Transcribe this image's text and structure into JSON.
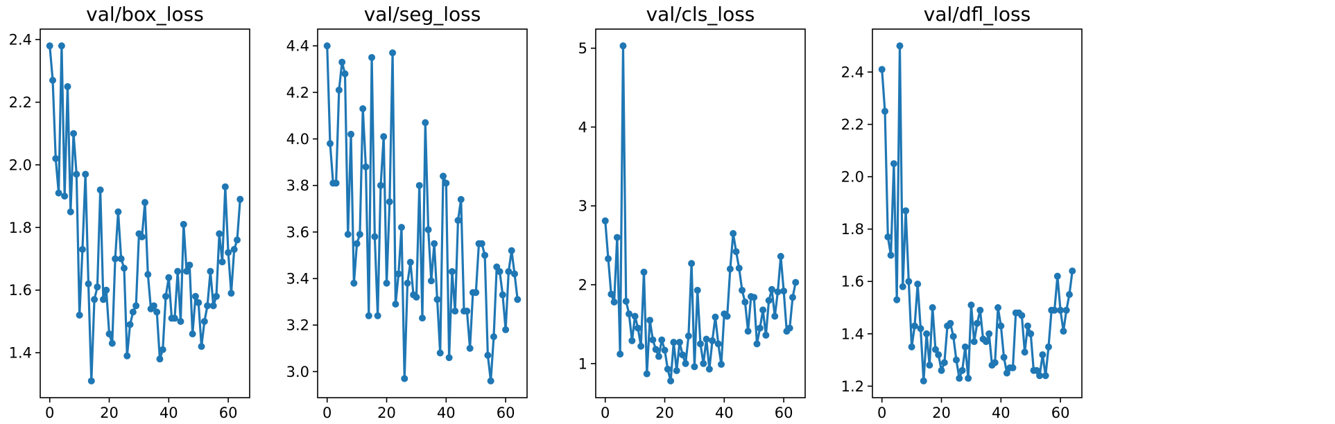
{
  "chart_data": [
    {
      "type": "line",
      "title": "val/box_loss",
      "color": "#1f77b4",
      "grid": false,
      "x": [
        0,
        1,
        2,
        3,
        4,
        5,
        6,
        7,
        8,
        9,
        10,
        11,
        12,
        13,
        14,
        15,
        16,
        17,
        18,
        19,
        20,
        21,
        22,
        23,
        24,
        25,
        26,
        27,
        28,
        29,
        30,
        31,
        32,
        33,
        34,
        35,
        36,
        37,
        38,
        39,
        40,
        41,
        42,
        43,
        44,
        45,
        46,
        47,
        48,
        49,
        50,
        51,
        52,
        53,
        54,
        55,
        56,
        57,
        58,
        59,
        60,
        61,
        62,
        63,
        64
      ],
      "y": [
        2.38,
        2.27,
        2.02,
        1.91,
        2.38,
        1.9,
        2.25,
        1.85,
        2.1,
        1.97,
        1.52,
        1.73,
        1.97,
        1.62,
        1.31,
        1.57,
        1.61,
        1.92,
        1.57,
        1.6,
        1.46,
        1.43,
        1.7,
        1.85,
        1.7,
        1.67,
        1.39,
        1.49,
        1.53,
        1.55,
        1.78,
        1.77,
        1.88,
        1.65,
        1.54,
        1.55,
        1.53,
        1.38,
        1.41,
        1.58,
        1.64,
        1.51,
        1.51,
        1.66,
        1.5,
        1.81,
        1.66,
        1.68,
        1.46,
        1.58,
        1.56,
        1.42,
        1.5,
        1.55,
        1.66,
        1.55,
        1.58,
        1.78,
        1.69,
        1.93,
        1.72,
        1.59,
        1.73,
        1.76,
        1.89
      ],
      "xlim": [
        -3.2,
        67.2
      ],
      "ylim": [
        1.2565,
        2.4335
      ],
      "xticks": [
        0,
        20,
        40,
        60
      ],
      "xtick_labels": [
        "0",
        "20",
        "40",
        "60"
      ],
      "yticks": [
        1.4,
        1.6,
        1.8,
        2.0,
        2.2,
        2.4
      ],
      "ytick_labels": [
        "1.4",
        "1.6",
        "1.8",
        "2.0",
        "2.2",
        "2.4"
      ]
    },
    {
      "type": "line",
      "title": "val/seg_loss",
      "color": "#1f77b4",
      "grid": false,
      "x": [
        0,
        1,
        2,
        3,
        4,
        5,
        6,
        7,
        8,
        9,
        10,
        11,
        12,
        13,
        14,
        15,
        16,
        17,
        18,
        19,
        20,
        21,
        22,
        23,
        24,
        25,
        26,
        27,
        28,
        29,
        30,
        31,
        32,
        33,
        34,
        35,
        36,
        37,
        38,
        39,
        40,
        41,
        42,
        43,
        44,
        45,
        46,
        47,
        48,
        49,
        50,
        51,
        52,
        53,
        54,
        55,
        56,
        57,
        58,
        59,
        60,
        61,
        62,
        63,
        64
      ],
      "y": [
        4.4,
        3.98,
        3.81,
        3.81,
        4.21,
        4.33,
        4.28,
        3.59,
        4.02,
        3.38,
        3.55,
        3.59,
        4.13,
        3.88,
        3.24,
        4.35,
        3.58,
        3.24,
        3.8,
        4.01,
        3.38,
        3.73,
        4.37,
        3.29,
        3.42,
        3.62,
        2.97,
        3.38,
        3.47,
        3.33,
        3.32,
        3.8,
        3.23,
        4.07,
        3.61,
        3.39,
        3.55,
        3.31,
        3.08,
        3.84,
        3.81,
        3.06,
        3.43,
        3.26,
        3.65,
        3.74,
        3.26,
        3.26,
        3.1,
        3.34,
        3.34,
        3.55,
        3.55,
        3.5,
        3.07,
        2.96,
        3.15,
        3.45,
        3.43,
        3.33,
        3.18,
        3.43,
        3.52,
        3.42,
        3.31
      ],
      "xlim": [
        -3.2,
        67.2
      ],
      "ylim": [
        2.888,
        4.472
      ],
      "xticks": [
        0,
        20,
        40,
        60
      ],
      "xtick_labels": [
        "0",
        "20",
        "40",
        "60"
      ],
      "yticks": [
        3.0,
        3.2,
        3.4,
        3.6,
        3.8,
        4.0,
        4.2,
        4.4
      ],
      "ytick_labels": [
        "3.0",
        "3.2",
        "3.4",
        "3.6",
        "3.8",
        "4.0",
        "4.2",
        "4.4"
      ]
    },
    {
      "type": "line",
      "title": "val/cls_loss",
      "color": "#1f77b4",
      "grid": false,
      "x": [
        0,
        1,
        2,
        3,
        4,
        5,
        6,
        7,
        8,
        9,
        10,
        11,
        12,
        13,
        14,
        15,
        16,
        17,
        18,
        19,
        20,
        21,
        22,
        23,
        24,
        25,
        26,
        27,
        28,
        29,
        30,
        31,
        32,
        33,
        34,
        35,
        36,
        37,
        38,
        39,
        40,
        41,
        42,
        43,
        44,
        45,
        46,
        47,
        48,
        49,
        50,
        51,
        52,
        53,
        54,
        55,
        56,
        57,
        58,
        59,
        60,
        61,
        62,
        63,
        64
      ],
      "y": [
        2.81,
        2.33,
        1.88,
        1.78,
        2.6,
        1.12,
        5.03,
        1.79,
        1.63,
        1.29,
        1.6,
        1.45,
        1.22,
        2.16,
        0.87,
        1.55,
        1.3,
        1.18,
        1.09,
        1.3,
        1.17,
        0.93,
        0.78,
        1.27,
        0.91,
        1.27,
        1.11,
        1.0,
        1.35,
        2.27,
        0.96,
        1.93,
        1.25,
        1.0,
        1.31,
        0.93,
        1.29,
        1.59,
        1.25,
        0.99,
        1.63,
        1.6,
        2.2,
        2.65,
        2.42,
        2.21,
        1.93,
        1.78,
        1.41,
        1.85,
        1.84,
        1.25,
        1.45,
        1.68,
        1.36,
        1.8,
        1.94,
        1.6,
        1.91,
        2.36,
        1.92,
        1.41,
        1.45,
        1.84,
        2.03
      ],
      "xlim": [
        -3.2,
        67.2
      ],
      "ylim": [
        0.5675,
        5.2425
      ],
      "xticks": [
        0,
        20,
        40,
        60
      ],
      "xtick_labels": [
        "0",
        "20",
        "40",
        "60"
      ],
      "yticks": [
        1,
        2,
        3,
        4,
        5
      ],
      "ytick_labels": [
        "1",
        "2",
        "3",
        "4",
        "5"
      ]
    },
    {
      "type": "line",
      "title": "val/dfl_loss",
      "color": "#1f77b4",
      "grid": false,
      "x": [
        0,
        1,
        2,
        3,
        4,
        5,
        6,
        7,
        8,
        9,
        10,
        11,
        12,
        13,
        14,
        15,
        16,
        17,
        18,
        19,
        20,
        21,
        22,
        23,
        24,
        25,
        26,
        27,
        28,
        29,
        30,
        31,
        32,
        33,
        34,
        35,
        36,
        37,
        38,
        39,
        40,
        41,
        42,
        43,
        44,
        45,
        46,
        47,
        48,
        49,
        50,
        51,
        52,
        53,
        54,
        55,
        56,
        57,
        58,
        59,
        60,
        61,
        62,
        63,
        64
      ],
      "y": [
        2.41,
        2.25,
        1.77,
        1.7,
        2.05,
        1.53,
        2.5,
        1.58,
        1.87,
        1.6,
        1.35,
        1.43,
        1.59,
        1.42,
        1.22,
        1.4,
        1.28,
        1.5,
        1.34,
        1.32,
        1.26,
        1.29,
        1.43,
        1.44,
        1.39,
        1.3,
        1.23,
        1.26,
        1.35,
        1.23,
        1.51,
        1.37,
        1.44,
        1.49,
        1.38,
        1.37,
        1.4,
        1.28,
        1.29,
        1.5,
        1.43,
        1.31,
        1.25,
        1.27,
        1.27,
        1.48,
        1.48,
        1.47,
        1.33,
        1.43,
        1.4,
        1.26,
        1.26,
        1.24,
        1.32,
        1.24,
        1.35,
        1.49,
        1.49,
        1.62,
        1.49,
        1.41,
        1.49,
        1.55,
        1.64
      ],
      "xlim": [
        -3.2,
        67.2
      ],
      "ylim": [
        1.156,
        2.564
      ],
      "xticks": [
        0,
        20,
        40,
        60
      ],
      "xtick_labels": [
        "0",
        "20",
        "40",
        "60"
      ],
      "yticks": [
        1.2,
        1.4,
        1.6,
        1.8,
        2.0,
        2.2,
        2.4
      ],
      "ytick_labels": [
        "1.2",
        "1.4",
        "1.6",
        "1.8",
        "2.0",
        "2.2",
        "2.4"
      ]
    }
  ]
}
